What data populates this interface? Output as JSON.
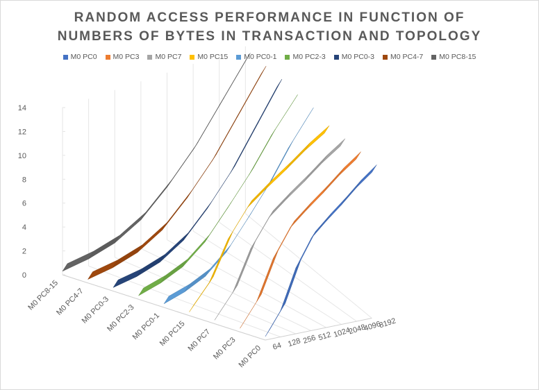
{
  "chart_data": {
    "type": "line",
    "subtype": "3d-line",
    "title_lines": [
      "RANDOM ACCESS PERFORMANCE IN FUNCTION OF",
      "NUMBERS OF BYTES IN TRANSACTION AND TOPOLOGY"
    ],
    "x": [
      "64",
      "128",
      "256",
      "512",
      "1024",
      "2048",
      "4096",
      "8192"
    ],
    "depth_labels": [
      "M0 PC8-15",
      "M0 PC4-7",
      "M0 PC0-3",
      "M0 PC2-3",
      "M0 PC0-1",
      "M0 PC15",
      "M0 PC7",
      "M0 PC3",
      "M0 PC0"
    ],
    "ylim": [
      0,
      14
    ],
    "y_ticks": [
      "0",
      "2",
      "4",
      "6",
      "8",
      "10",
      "12",
      "14"
    ],
    "legend_position": "top",
    "grid": true,
    "series": [
      {
        "name": "M0 PC0",
        "color": "#4472c4",
        "values": [
          0.3,
          2.2,
          5.5,
          7.7,
          8.9,
          10.0,
          11.2,
          12.2
        ]
      },
      {
        "name": "M0 PC3",
        "color": "#ed7d31",
        "values": [
          0.3,
          2.2,
          5.5,
          7.7,
          8.9,
          10.0,
          11.2,
          12.2
        ]
      },
      {
        "name": "M0 PC7",
        "color": "#a5a5a5",
        "values": [
          0.3,
          2.2,
          5.5,
          7.7,
          8.9,
          10.0,
          11.2,
          12.2
        ]
      },
      {
        "name": "M0 PC15",
        "color": "#ffc000",
        "values": [
          0.3,
          2.2,
          5.5,
          7.7,
          8.9,
          10.0,
          11.2,
          12.2
        ]
      },
      {
        "name": "M0 PC0-1",
        "color": "#5b9bd5",
        "values": [
          0.3,
          0.8,
          1.6,
          3.1,
          5.3,
          7.6,
          10.3,
          12.6
        ]
      },
      {
        "name": "M0 PC2-3",
        "color": "#70ad47",
        "values": [
          0.3,
          0.8,
          1.6,
          3.1,
          5.3,
          7.6,
          10.3,
          12.6
        ]
      },
      {
        "name": "M0 PC0-3",
        "color": "#264478",
        "values": [
          0.3,
          0.6,
          1.2,
          2.4,
          4.4,
          6.8,
          9.8,
          12.8
        ]
      },
      {
        "name": "M0 PC4-7",
        "color": "#9e480e",
        "values": [
          0.3,
          0.6,
          1.2,
          2.4,
          4.4,
          6.8,
          9.8,
          12.8
        ]
      },
      {
        "name": "M0 PC8-15",
        "color": "#636363",
        "values": [
          0.3,
          0.6,
          1.2,
          2.4,
          4.4,
          6.8,
          9.8,
          12.8
        ]
      }
    ]
  }
}
